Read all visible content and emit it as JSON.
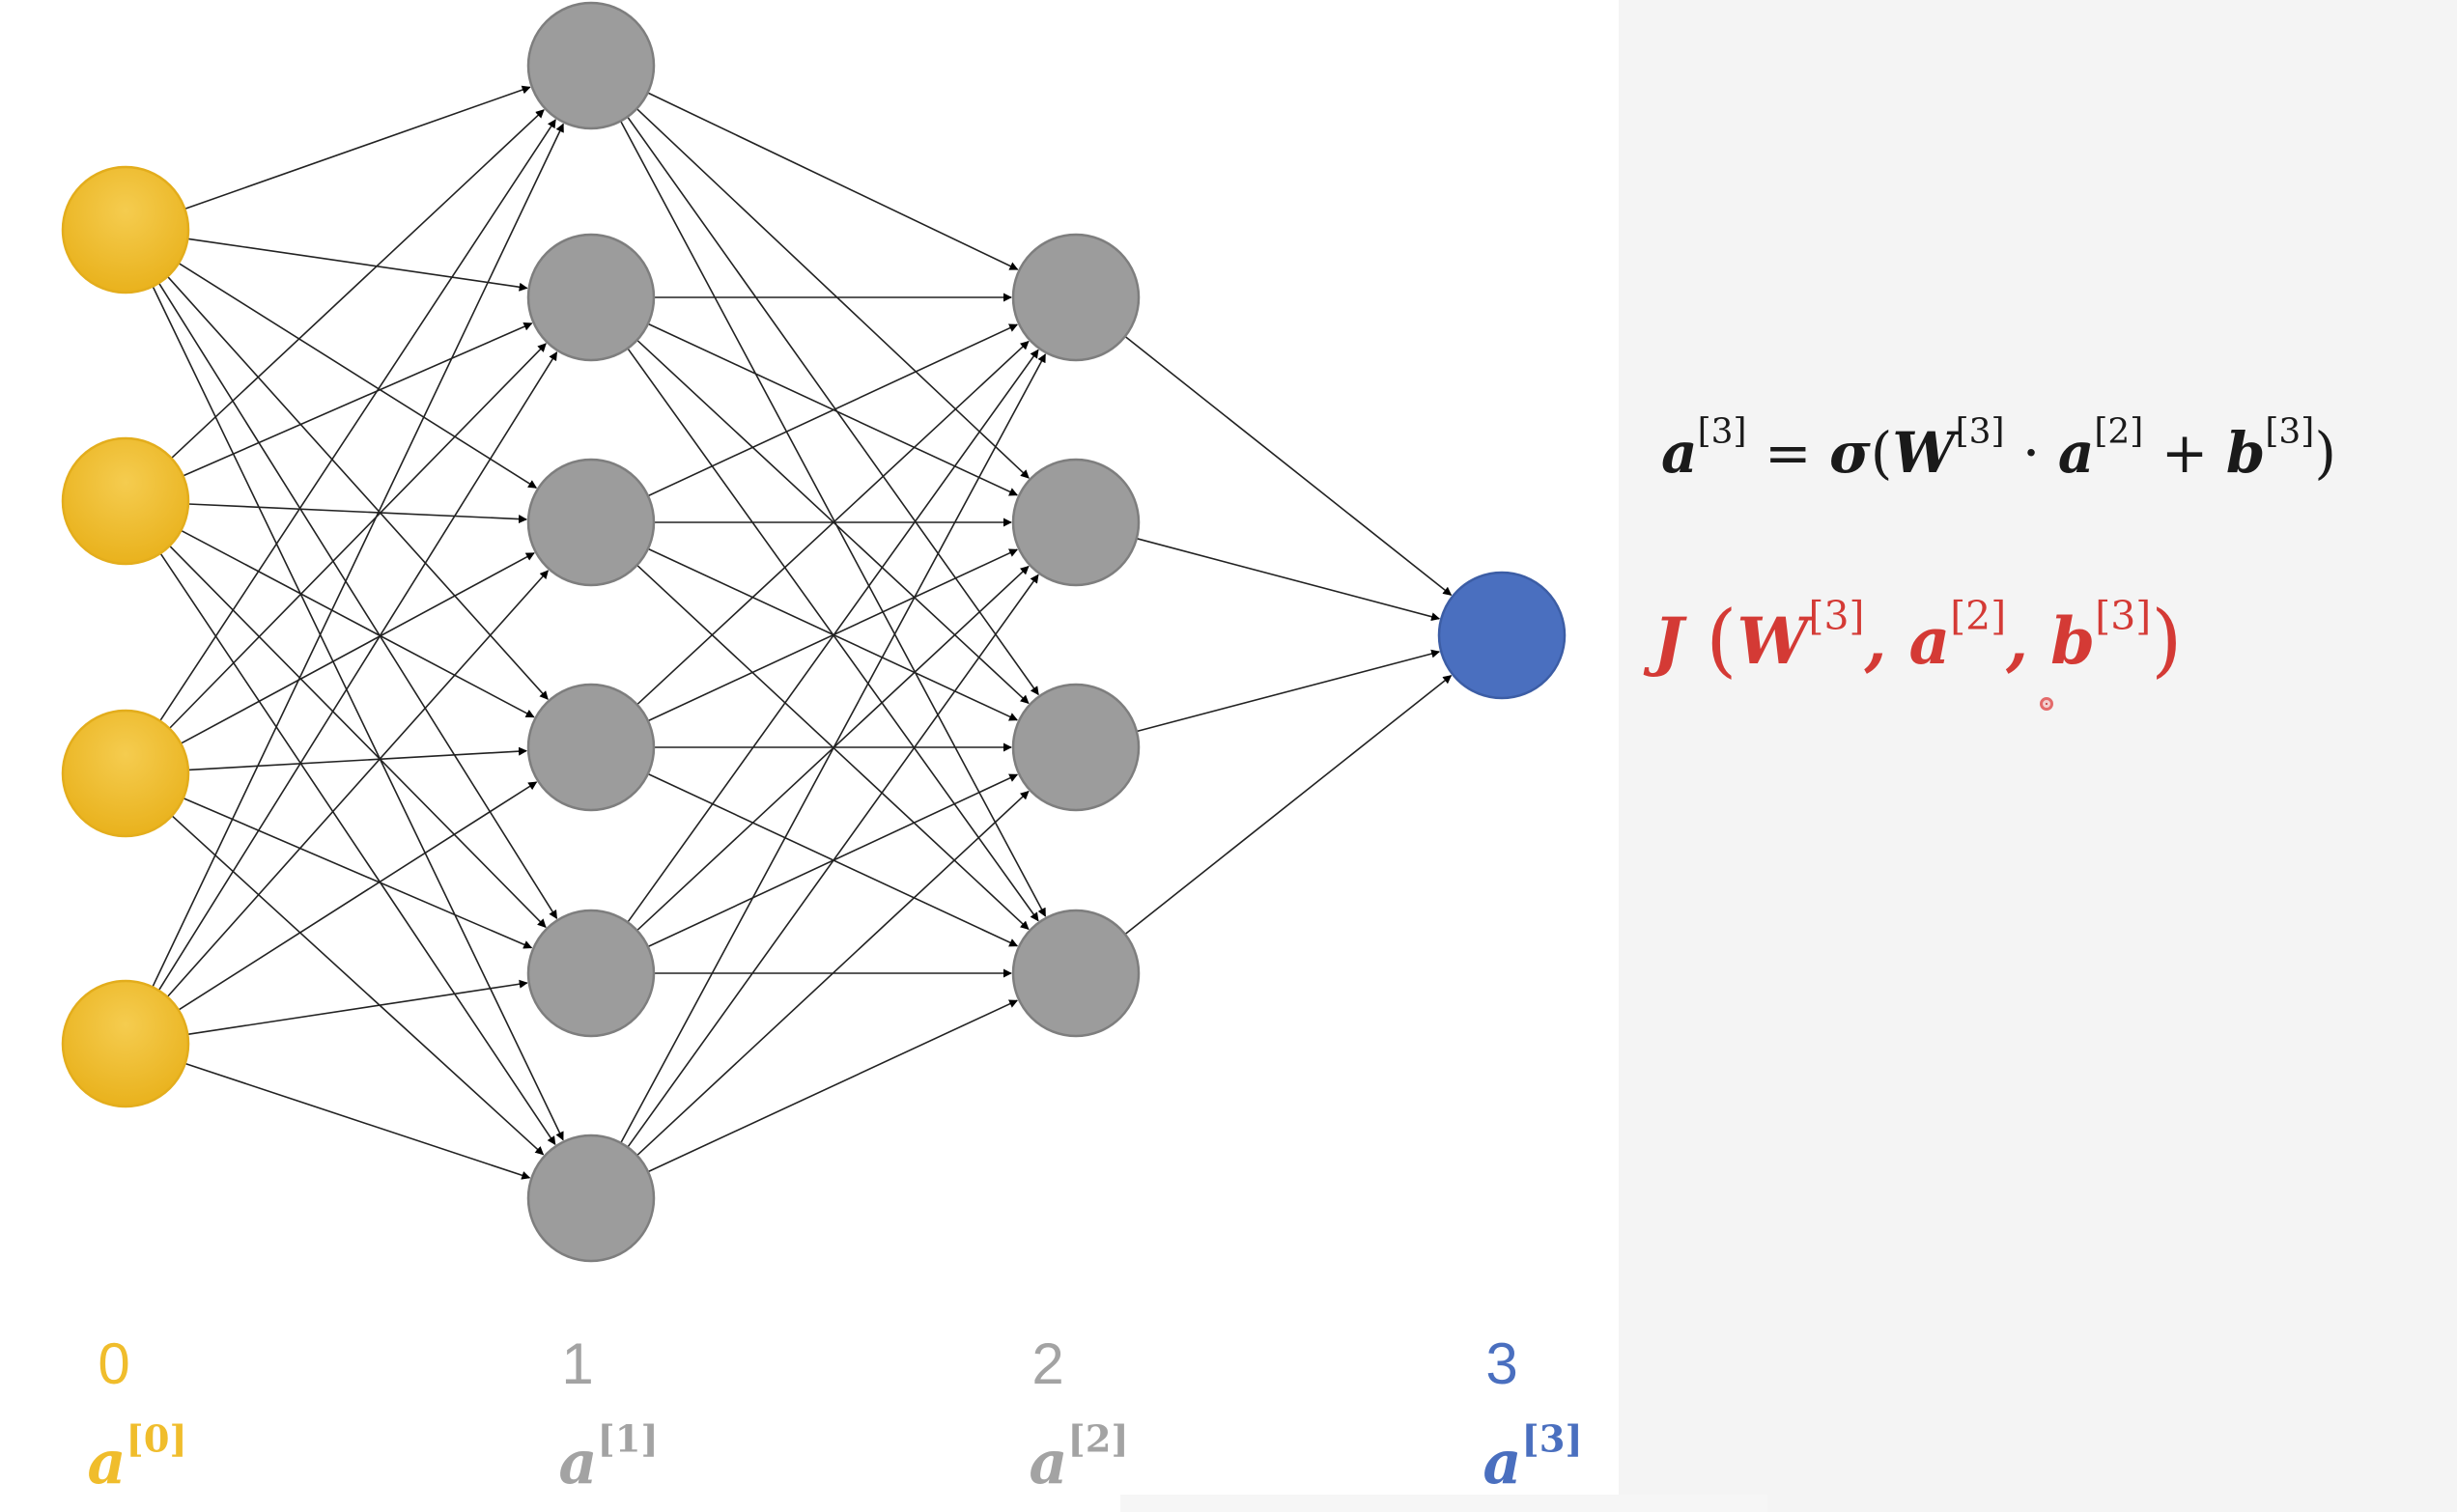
{
  "colors": {
    "input": "#f0bd2c",
    "hidden": "#9c9c9c",
    "output": "#4a6fbf",
    "equation_dark": "#1a1a1a",
    "equation_red": "#d43a35",
    "edge": "#222222"
  },
  "network": {
    "layers": [
      {
        "index_label": "0",
        "activation_base": "a",
        "activation_sup": "[0]",
        "color": "#f0bd2c",
        "size": 4
      },
      {
        "index_label": "1",
        "activation_base": "a",
        "activation_sup": "[1]",
        "color": "#a3a3a3",
        "size": 6
      },
      {
        "index_label": "2",
        "activation_base": "a",
        "activation_sup": "[2]",
        "color": "#a3a3a3",
        "size": 4
      },
      {
        "index_label": "3",
        "activation_base": "a",
        "activation_sup": "[3]",
        "color": "#4a6fbf",
        "size": 1
      }
    ],
    "connectivity": "fully-connected"
  },
  "equations": {
    "eq1": {
      "a": "a",
      "a_sup": "[3]",
      "equals": " = ",
      "sigma": "σ",
      "open": "(",
      "W": "W",
      "W_sup": "[3]",
      "dot": " · ",
      "a2": "a",
      "a2_sup": "[2]",
      "plus": " + ",
      "b": "b",
      "b_sup": "[3]",
      "close": ")"
    },
    "eq2": {
      "J": "J",
      "open": "(",
      "W": "W",
      "W_sup": "[3]",
      "comma1": ", ",
      "a": "a",
      "a_sup": "[2]",
      "comma2": ", ",
      "b": "b",
      "b_sup": "[3]",
      "close": ")"
    }
  }
}
